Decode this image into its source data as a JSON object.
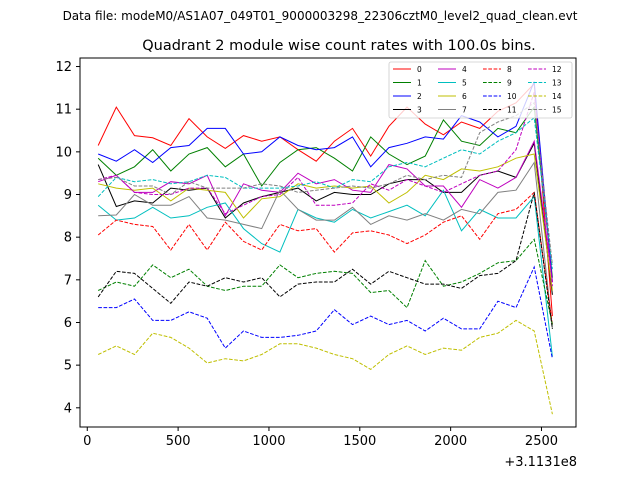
{
  "header": {
    "datafile_label": "Data file: modeM0/AS1A07_049T01_9000003298_22306cztM0_level2_quad_clean.evt"
  },
  "chart_data": {
    "type": "line",
    "title": "Quadrant 2 module wise count rates with 100.0s bins.",
    "xlabel": "",
    "ylabel": "",
    "x_offset_label": "+3.1131e8",
    "xlim": [
      -40,
      2690
    ],
    "ylim": [
      3.55,
      12.2
    ],
    "xticks": [
      0,
      500,
      1000,
      1500,
      2000,
      2500
    ],
    "yticks": [
      4,
      5,
      6,
      7,
      8,
      9,
      10,
      11,
      12
    ],
    "legend_position": "top-right",
    "x": [
      60,
      160,
      260,
      360,
      460,
      560,
      660,
      760,
      860,
      960,
      1060,
      1160,
      1260,
      1360,
      1460,
      1560,
      1660,
      1760,
      1860,
      1960,
      2060,
      2160,
      2260,
      2360,
      2460,
      2560
    ],
    "series": [
      {
        "name": "0",
        "color": "#ff0000",
        "dash": "solid",
        "values": [
          10.15,
          11.05,
          10.38,
          10.33,
          10.15,
          10.78,
          10.35,
          10.08,
          10.38,
          10.25,
          10.35,
          10.05,
          9.78,
          10.25,
          10.55,
          9.9,
          10.6,
          11.05,
          10.65,
          10.4,
          10.7,
          10.55,
          10.95,
          11.15,
          11.6,
          6.15
        ]
      },
      {
        "name": "1",
        "color": "#008000",
        "dash": "solid",
        "values": [
          9.85,
          9.45,
          9.65,
          10.05,
          9.55,
          9.95,
          10.1,
          9.65,
          9.95,
          9.2,
          9.75,
          10.05,
          10.1,
          9.85,
          9.55,
          10.35,
          9.95,
          9.7,
          9.9,
          10.75,
          10.25,
          10.15,
          10.55,
          10.45,
          11.05,
          7.05
        ]
      },
      {
        "name": "2",
        "color": "#0000ff",
        "dash": "solid",
        "values": [
          9.95,
          9.78,
          10.05,
          9.75,
          10.1,
          10.15,
          10.55,
          10.55,
          9.95,
          10.0,
          10.35,
          10.15,
          10.05,
          10.1,
          10.35,
          9.65,
          10.1,
          10.2,
          10.35,
          10.3,
          10.85,
          10.7,
          10.35,
          10.6,
          11.65,
          6.95
        ]
      },
      {
        "name": "3",
        "color": "#000000",
        "dash": "solid",
        "values": [
          9.7,
          8.72,
          8.85,
          8.8,
          9.15,
          9.1,
          9.15,
          8.45,
          8.8,
          8.95,
          9.05,
          9.15,
          8.85,
          9.05,
          9.0,
          9.0,
          9.25,
          9.35,
          9.35,
          9.05,
          9.05,
          9.45,
          9.55,
          9.4,
          10.2,
          6.65
        ]
      },
      {
        "name": "4",
        "color": "#bf00bf",
        "dash": "solid",
        "values": [
          9.3,
          9.45,
          9.05,
          9.05,
          9.3,
          9.25,
          9.45,
          8.5,
          9.25,
          9.1,
          9.05,
          9.5,
          9.25,
          9.35,
          9.1,
          9.05,
          9.7,
          9.6,
          9.2,
          9.2,
          8.7,
          9.35,
          9.15,
          9.4,
          10.25,
          6.95
        ]
      },
      {
        "name": "5",
        "color": "#00bfbf",
        "dash": "solid",
        "values": [
          8.75,
          8.4,
          8.45,
          8.7,
          8.45,
          8.5,
          8.7,
          8.8,
          8.2,
          7.85,
          7.65,
          8.65,
          8.45,
          8.35,
          8.65,
          8.45,
          8.6,
          8.75,
          8.5,
          9.1,
          8.15,
          8.65,
          8.45,
          8.45,
          8.95,
          5.2
        ]
      },
      {
        "name": "6",
        "color": "#bfbf00",
        "dash": "solid",
        "values": [
          9.25,
          9.15,
          9.1,
          9.15,
          8.85,
          9.15,
          9.1,
          9.05,
          8.45,
          8.9,
          8.95,
          9.25,
          9.15,
          9.2,
          9.15,
          9.2,
          8.8,
          9.05,
          9.45,
          9.35,
          9.6,
          9.55,
          9.65,
          9.85,
          9.95,
          6.75
        ]
      },
      {
        "name": "7",
        "color": "#808080",
        "dash": "solid",
        "values": [
          8.5,
          8.52,
          9.0,
          8.75,
          8.75,
          8.95,
          8.45,
          8.4,
          8.3,
          8.2,
          9.1,
          8.65,
          8.4,
          8.4,
          8.7,
          8.3,
          8.5,
          8.4,
          8.55,
          8.4,
          8.65,
          8.55,
          9.05,
          9.1,
          9.75,
          5.85
        ]
      },
      {
        "name": "8",
        "color": "#ff0000",
        "dash": "dashed",
        "values": [
          8.05,
          8.4,
          8.3,
          8.25,
          7.7,
          8.3,
          7.7,
          8.35,
          7.9,
          7.7,
          8.3,
          8.15,
          8.2,
          7.65,
          8.1,
          8.15,
          8.05,
          7.85,
          8.05,
          8.35,
          8.5,
          7.95,
          8.55,
          8.65,
          9.05,
          5.95
        ]
      },
      {
        "name": "9",
        "color": "#008000",
        "dash": "dashed",
        "values": [
          6.75,
          6.95,
          6.85,
          7.35,
          7.05,
          7.25,
          6.85,
          6.75,
          6.85,
          6.85,
          7.35,
          7.05,
          7.15,
          7.2,
          7.15,
          6.7,
          6.75,
          6.35,
          7.45,
          6.85,
          6.95,
          7.15,
          7.4,
          7.45,
          7.95,
          5.95
        ]
      },
      {
        "name": "10",
        "color": "#0000ff",
        "dash": "dashed",
        "values": [
          6.35,
          6.35,
          6.55,
          6.05,
          6.05,
          6.25,
          6.1,
          5.4,
          5.8,
          5.65,
          5.65,
          5.7,
          5.8,
          6.3,
          5.95,
          6.15,
          5.95,
          6.05,
          5.8,
          6.1,
          5.85,
          5.85,
          6.5,
          6.35,
          7.3,
          5.15
        ]
      },
      {
        "name": "11",
        "color": "#000000",
        "dash": "dashed",
        "values": [
          6.6,
          7.2,
          7.15,
          6.8,
          6.45,
          6.95,
          6.85,
          7.05,
          6.95,
          7.05,
          6.6,
          6.9,
          6.95,
          6.95,
          7.25,
          6.9,
          7.2,
          7.05,
          6.9,
          6.9,
          6.8,
          7.1,
          7.15,
          7.45,
          9.05,
          5.85
        ]
      },
      {
        "name": "12",
        "color": "#bf00bf",
        "dash": "dashed",
        "values": [
          9.35,
          9.45,
          9.05,
          9.0,
          9.0,
          9.15,
          9.15,
          8.55,
          8.75,
          8.95,
          9.0,
          9.4,
          8.75,
          8.75,
          8.8,
          9.25,
          9.1,
          9.35,
          9.2,
          9.05,
          9.25,
          9.45,
          9.55,
          10.05,
          11.4,
          6.85
        ]
      },
      {
        "name": "13",
        "color": "#00bfbf",
        "dash": "dashed",
        "values": [
          8.95,
          9.4,
          9.3,
          9.35,
          9.25,
          9.3,
          9.45,
          9.4,
          9.15,
          9.15,
          9.15,
          9.2,
          9.3,
          9.15,
          9.35,
          9.3,
          9.65,
          9.75,
          9.65,
          9.85,
          10.05,
          9.95,
          10.25,
          10.45,
          10.8,
          7.25
        ]
      },
      {
        "name": "14",
        "color": "#bfbf00",
        "dash": "dashed",
        "values": [
          5.25,
          5.45,
          5.25,
          5.75,
          5.65,
          5.4,
          5.05,
          5.15,
          5.1,
          5.25,
          5.5,
          5.5,
          5.4,
          5.25,
          5.15,
          4.9,
          5.25,
          5.45,
          5.25,
          5.4,
          5.35,
          5.65,
          5.75,
          6.05,
          5.8,
          3.85
        ]
      },
      {
        "name": "15",
        "color": "#808080",
        "dash": "dashed",
        "values": [
          9.35,
          9.4,
          9.2,
          9.2,
          9.0,
          9.3,
          9.15,
          9.15,
          9.15,
          9.25,
          9.2,
          9.05,
          9.1,
          9.15,
          9.2,
          9.15,
          9.25,
          9.45,
          9.35,
          9.45,
          9.4,
          10.45,
          10.7,
          10.85,
          11.15,
          7.35
        ]
      }
    ]
  }
}
